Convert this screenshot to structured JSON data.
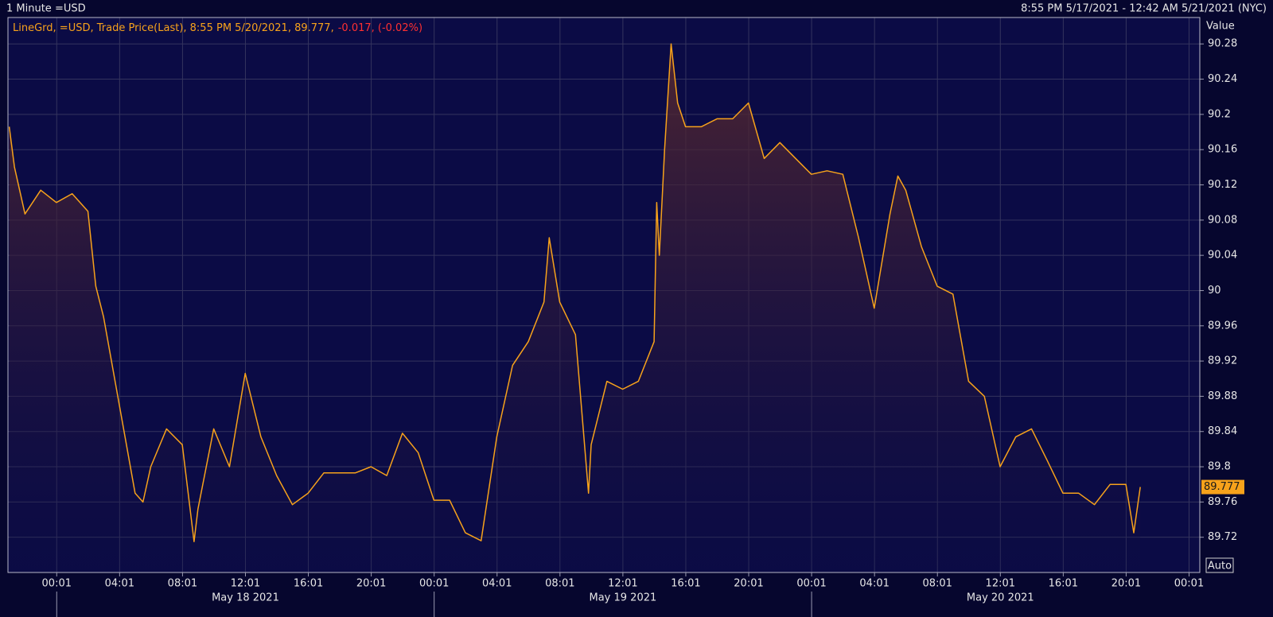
{
  "chart_data": {
    "type": "line",
    "title": "1 Minute =USD",
    "range_text": "8:55 PM 5/17/2021 - 12:42 AM 5/21/2021 (NYC)",
    "legend_text": "LineGrd, =USD, Trade Price(Last), 8:55 PM 5/20/2021, 89.777,",
    "legend_change": "-0.017, (-0.02%)",
    "y_axis_label": "Value",
    "button_label": "Auto",
    "x": [
      "2021-05-17T21:00",
      "2021-05-17T21:20",
      "2021-05-17T22:00",
      "2021-05-17T23:00",
      "2021-05-18T00:00",
      "2021-05-18T01:00",
      "2021-05-18T02:00",
      "2021-05-18T02:30",
      "2021-05-18T03:00",
      "2021-05-18T04:00",
      "2021-05-18T05:00",
      "2021-05-18T05:30",
      "2021-05-18T06:00",
      "2021-05-18T07:00",
      "2021-05-18T08:00",
      "2021-05-18T08:45",
      "2021-05-18T09:00",
      "2021-05-18T10:00",
      "2021-05-18T11:00",
      "2021-05-18T12:00",
      "2021-05-18T13:00",
      "2021-05-18T14:00",
      "2021-05-18T15:00",
      "2021-05-18T16:00",
      "2021-05-18T17:00",
      "2021-05-18T18:00",
      "2021-05-18T19:00",
      "2021-05-18T20:00",
      "2021-05-18T21:00",
      "2021-05-18T22:00",
      "2021-05-18T23:00",
      "2021-05-19T00:00",
      "2021-05-19T01:00",
      "2021-05-19T02:00",
      "2021-05-19T03:00",
      "2021-05-19T04:00",
      "2021-05-19T05:00",
      "2021-05-19T06:00",
      "2021-05-19T07:00",
      "2021-05-19T07:20",
      "2021-05-19T08:00",
      "2021-05-19T09:00",
      "2021-05-19T09:50",
      "2021-05-19T10:00",
      "2021-05-19T11:00",
      "2021-05-19T12:00",
      "2021-05-19T13:00",
      "2021-05-19T14:00",
      "2021-05-19T14:10",
      "2021-05-19T14:20",
      "2021-05-19T14:40",
      "2021-05-19T15:05",
      "2021-05-19T15:30",
      "2021-05-19T16:00",
      "2021-05-19T17:00",
      "2021-05-19T18:00",
      "2021-05-19T19:00",
      "2021-05-19T20:00",
      "2021-05-19T21:00",
      "2021-05-19T22:00",
      "2021-05-19T23:00",
      "2021-05-20T00:00",
      "2021-05-20T01:00",
      "2021-05-20T02:00",
      "2021-05-20T03:00",
      "2021-05-20T04:00",
      "2021-05-20T05:00",
      "2021-05-20T05:30",
      "2021-05-20T06:00",
      "2021-05-20T07:00",
      "2021-05-20T08:00",
      "2021-05-20T09:00",
      "2021-05-20T10:00",
      "2021-05-20T11:00",
      "2021-05-20T12:00",
      "2021-05-20T13:00",
      "2021-05-20T14:00",
      "2021-05-20T15:00",
      "2021-05-20T16:00",
      "2021-05-20T17:00",
      "2021-05-20T18:00",
      "2021-05-20T19:00",
      "2021-05-20T20:00",
      "2021-05-20T20:30",
      "2021-05-20T20:55"
    ],
    "series": [
      {
        "name": "LineGrd, =USD, Trade Price(Last)",
        "color": "#f7a21b",
        "values": [
          90.186,
          90.14,
          90.087,
          90.114,
          90.1,
          90.11,
          90.09,
          90.005,
          89.97,
          89.87,
          89.77,
          89.76,
          89.8,
          89.843,
          89.825,
          89.715,
          89.752,
          89.843,
          89.8,
          89.906,
          89.834,
          89.79,
          89.757,
          89.77,
          89.793,
          89.793,
          89.793,
          89.8,
          89.79,
          89.838,
          89.816,
          89.762,
          89.762,
          89.725,
          89.716,
          89.834,
          89.915,
          89.942,
          89.987,
          90.06,
          89.987,
          89.95,
          89.77,
          89.825,
          89.897,
          89.888,
          89.897,
          89.942,
          90.1,
          90.04,
          90.16,
          90.28,
          90.213,
          90.186,
          90.186,
          90.195,
          90.195,
          90.213,
          90.15,
          90.168,
          90.15,
          90.132,
          90.136,
          90.132,
          90.06,
          89.98,
          90.087,
          90.13,
          90.114,
          90.05,
          90.005,
          89.996,
          89.897,
          89.88,
          89.8,
          89.834,
          89.843,
          89.807,
          89.77,
          89.77,
          89.757,
          89.78,
          89.78,
          89.725,
          89.777
        ]
      }
    ],
    "xlim": [
      "2021-05-17T20:55",
      "2021-05-21T00:42"
    ],
    "xticks": [
      {
        "value": "2021-05-18T00:01",
        "label": "00:01"
      },
      {
        "value": "2021-05-18T04:01",
        "label": "04:01"
      },
      {
        "value": "2021-05-18T08:01",
        "label": "08:01"
      },
      {
        "value": "2021-05-18T12:01",
        "label": "12:01"
      },
      {
        "value": "2021-05-18T16:01",
        "label": "16:01"
      },
      {
        "value": "2021-05-18T20:01",
        "label": "20:01"
      },
      {
        "value": "2021-05-19T00:01",
        "label": "00:01"
      },
      {
        "value": "2021-05-19T04:01",
        "label": "04:01"
      },
      {
        "value": "2021-05-19T08:01",
        "label": "08:01"
      },
      {
        "value": "2021-05-19T12:01",
        "label": "12:01"
      },
      {
        "value": "2021-05-19T16:01",
        "label": "16:01"
      },
      {
        "value": "2021-05-19T20:01",
        "label": "20:01"
      },
      {
        "value": "2021-05-20T00:01",
        "label": "00:01"
      },
      {
        "value": "2021-05-20T04:01",
        "label": "04:01"
      },
      {
        "value": "2021-05-20T08:01",
        "label": "08:01"
      },
      {
        "value": "2021-05-20T12:01",
        "label": "12:01"
      },
      {
        "value": "2021-05-20T16:01",
        "label": "16:01"
      },
      {
        "value": "2021-05-20T20:01",
        "label": "20:01"
      },
      {
        "value": "2021-05-21T00:01",
        "label": "00:01"
      }
    ],
    "date_labels": [
      {
        "value": "2021-05-18T12:01",
        "label": "May 18 2021"
      },
      {
        "value": "2021-05-19T12:01",
        "label": "May 19 2021"
      },
      {
        "value": "2021-05-20T12:01",
        "label": "May 20 2021"
      }
    ],
    "day_boundaries": [
      "2021-05-18T00:01",
      "2021-05-19T00:01",
      "2021-05-20T00:01"
    ],
    "ylim": [
      89.68,
      90.31
    ],
    "yticks": [
      89.72,
      89.76,
      89.8,
      89.84,
      89.88,
      89.92,
      89.96,
      90,
      90.04,
      90.08,
      90.12,
      90.16,
      90.2,
      90.24,
      90.28
    ],
    "grid": true
  }
}
